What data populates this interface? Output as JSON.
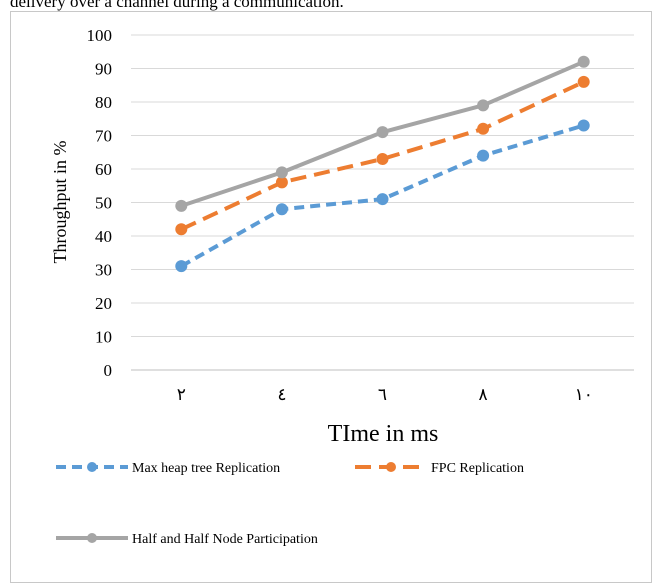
{
  "page": {
    "top_text": "delivery over a channel during a communication."
  },
  "chart_data": {
    "type": "line",
    "categories": [
      "٢",
      "٤",
      "٦",
      "٨",
      "١٠"
    ],
    "series": [
      {
        "name": "Max heap tree Replication",
        "values": [
          31,
          48,
          51,
          64,
          73
        ],
        "color": "#5B9BD5",
        "dash": "dashed"
      },
      {
        "name": "FPC Replication",
        "values": [
          42,
          56,
          63,
          72,
          86
        ],
        "color": "#ED7D31",
        "dash": "dashed"
      },
      {
        "name": "Half and Half Node Participation",
        "values": [
          49,
          59,
          71,
          79,
          92
        ],
        "color": "#A5A5A5",
        "dash": "solid"
      }
    ],
    "xlabel": "TIme in ms",
    "ylabel": "Throughput in %",
    "ylim": [
      0,
      100
    ],
    "yticks": [
      0,
      10,
      20,
      30,
      40,
      50,
      60,
      70,
      80,
      90,
      100
    ],
    "grid": true,
    "legend": "bottom"
  }
}
